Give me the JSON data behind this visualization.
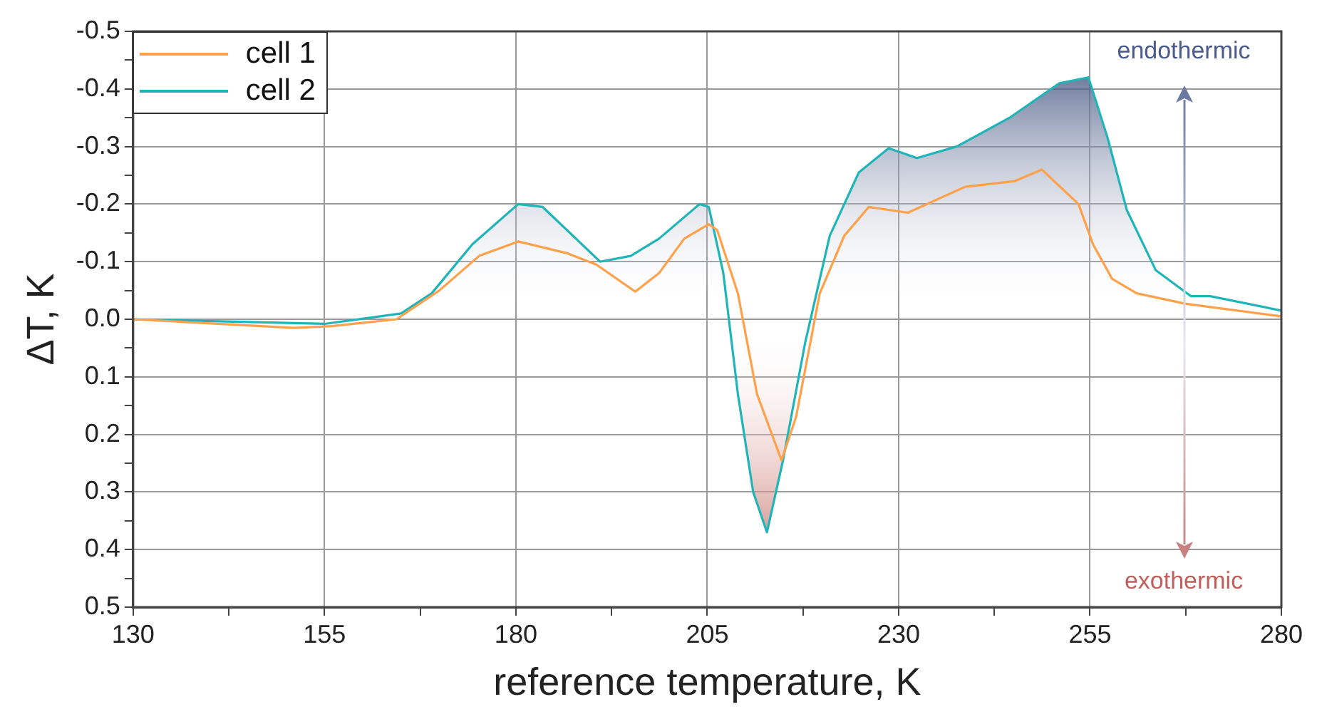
{
  "chart_data": {
    "type": "line",
    "xlabel": "reference temperature, K",
    "ylabel": "ΔT, K",
    "xlim": [
      130,
      280
    ],
    "xticks": [
      130,
      {
        "value": 142.5,
        "label": null
      },
      155,
      {
        "value": 167.5,
        "label": null
      },
      180,
      {
        "value": 192.5,
        "label": null
      },
      205,
      {
        "value": 217.5,
        "label": null
      },
      230,
      {
        "value": 242.5,
        "label": null
      },
      255,
      {
        "value": 267.5,
        "label": null
      },
      280
    ],
    "ylim": [
      0.5,
      -0.5
    ],
    "yticks": [
      -0.5,
      {
        "value": -0.45,
        "label": null
      },
      -0.4,
      {
        "value": -0.35,
        "label": null
      },
      -0.3,
      {
        "value": -0.25,
        "label": null
      },
      -0.2,
      {
        "value": -0.15,
        "label": null
      },
      -0.1,
      {
        "value": -0.05,
        "label": null
      },
      {
        "value": 0,
        "label": "0.0"
      },
      {
        "value": 0.05,
        "label": null
      },
      0.1,
      {
        "value": 0.15,
        "label": null
      },
      0.2,
      {
        "value": 0.25,
        "label": null
      },
      0.3,
      {
        "value": 0.35,
        "label": null
      },
      0.4,
      {
        "value": 0.45,
        "label": null
      },
      0.5
    ],
    "grid": true,
    "legend": "top left",
    "marker": "none",
    "line_style": "solid",
    "annotations": [
      "endothermic",
      "exothermic"
    ],
    "series": [
      {
        "name": "cell 1",
        "type": "line",
        "color": "#ffa04a",
        "x": [
          130,
          151,
          156,
          164.4,
          170,
          175.2,
          180.3,
          186.6,
          190.5,
          195.6,
          198.7,
          202,
          205.2,
          206.3,
          209,
          211.5,
          214.7,
          216.6,
          219.7,
          222.9,
          226.1,
          231.2,
          238.7,
          245.2,
          248.7,
          253.5,
          255.4,
          257.9,
          261.1,
          267.4,
          280
        ],
        "values": [
          0,
          0.015,
          0.012,
          0,
          -0.05,
          -0.11,
          -0.135,
          -0.115,
          -0.095,
          -0.048,
          -0.08,
          -0.14,
          -0.165,
          -0.155,
          -0.045,
          0.13,
          0.245,
          0.17,
          -0.045,
          -0.145,
          -0.195,
          -0.185,
          -0.23,
          -0.24,
          -0.26,
          -0.2,
          -0.13,
          -0.07,
          -0.045,
          -0.027,
          -0.005
        ]
      },
      {
        "name": "cell 2",
        "type": "area",
        "color": "#1fb5b8",
        "x": [
          130,
          155,
          165,
          169,
          174.3,
          180.3,
          183.5,
          191,
          195,
          198.7,
          204,
          205.2,
          207.1,
          209,
          211,
          212.8,
          214.9,
          217.8,
          221,
          224.8,
          228.7,
          232.4,
          237.6,
          244.5,
          251,
          254.8,
          257.3,
          259.8,
          263.6,
          268.2,
          270.7,
          280
        ],
        "values": [
          0,
          0.008,
          -0.01,
          -0.045,
          -0.13,
          -0.2,
          -0.195,
          -0.1,
          -0.11,
          -0.14,
          -0.2,
          -0.195,
          -0.08,
          0.13,
          0.3,
          0.37,
          0.245,
          0.04,
          -0.145,
          -0.255,
          -0.297,
          -0.28,
          -0.3,
          -0.35,
          -0.41,
          -0.42,
          -0.315,
          -0.19,
          -0.085,
          -0.04,
          -0.04,
          -0.015
        ]
      }
    ]
  }
}
